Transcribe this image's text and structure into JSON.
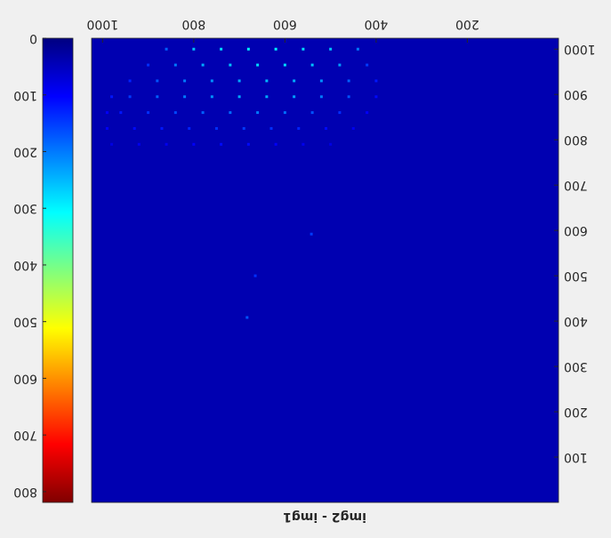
{
  "chart_data": {
    "type": "heatmap",
    "title": "img2 - img1",
    "xlim": [
      0,
      1024
    ],
    "ylim": [
      0,
      1024
    ],
    "xticks": [
      200,
      400,
      600,
      800,
      1000
    ],
    "yticks": [
      100,
      200,
      300,
      400,
      500,
      600,
      700,
      800,
      900,
      1000
    ],
    "clim": [
      0,
      819
    ],
    "cticks": [
      0,
      100,
      200,
      300,
      400,
      500,
      600,
      700,
      800
    ],
    "colormap": "jet",
    "rotated": true,
    "background_value": 40,
    "x": [
      440,
      500,
      560,
      620,
      680,
      740,
      800,
      860,
      420,
      480,
      540,
      600,
      660,
      720,
      780,
      840,
      900,
      400,
      460,
      520,
      580,
      640,
      700,
      760,
      820,
      880,
      940,
      400,
      460,
      520,
      580,
      640,
      700,
      760,
      820,
      880,
      940,
      980,
      420,
      480,
      540,
      600,
      660,
      720,
      780,
      840,
      900,
      960,
      990,
      450,
      510,
      570,
      630,
      690,
      750,
      810,
      870,
      930,
      990,
      500,
      560,
      620,
      680,
      740,
      800,
      860,
      920,
      980,
      542,
      683,
      665
    ],
    "y": [
      1000,
      1000,
      1000,
      1000,
      1000,
      1000,
      1000,
      1000,
      965,
      965,
      965,
      965,
      965,
      965,
      965,
      965,
      965,
      930,
      930,
      930,
      930,
      930,
      930,
      930,
      930,
      930,
      930,
      895,
      895,
      895,
      895,
      895,
      895,
      895,
      895,
      895,
      895,
      895,
      860,
      860,
      860,
      860,
      860,
      860,
      860,
      860,
      860,
      860,
      860,
      825,
      825,
      825,
      825,
      825,
      825,
      825,
      825,
      825,
      825,
      790,
      790,
      790,
      790,
      790,
      790,
      790,
      790,
      790,
      592,
      408,
      500
    ],
    "values": [
      200,
      260,
      280,
      300,
      300,
      280,
      260,
      180,
      150,
      230,
      260,
      280,
      280,
      260,
      240,
      200,
      140,
      120,
      180,
      220,
      240,
      250,
      240,
      220,
      200,
      170,
      130,
      110,
      170,
      200,
      230,
      240,
      240,
      220,
      200,
      180,
      150,
      120,
      100,
      140,
      170,
      190,
      200,
      190,
      180,
      160,
      140,
      120,
      100,
      90,
      110,
      130,
      140,
      150,
      140,
      130,
      120,
      110,
      100,
      80,
      90,
      100,
      110,
      110,
      100,
      90,
      90,
      80,
      150,
      170,
      140
    ]
  }
}
